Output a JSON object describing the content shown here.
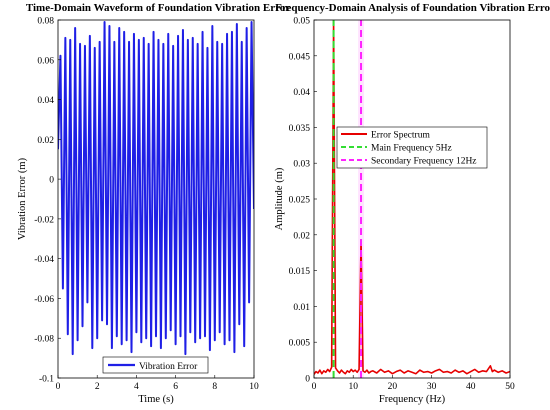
{
  "colors": {
    "waveform": "#1f1fe6",
    "spectrum": "#e60000",
    "main_frequency": "#33dd33",
    "secondary_frequency": "#ff22ff",
    "pink_band": "#ffe4ff",
    "axes": "#000000"
  },
  "chart_data": [
    {
      "type": "line",
      "title": "Time-Domain Waveform of Foundation Vibration Error",
      "xlabel": "Time (s)",
      "ylabel": "Vibration Error (m)",
      "xlim": [
        0,
        10
      ],
      "ylim": [
        -0.1,
        0.08
      ],
      "xticks": [
        "0",
        "2",
        "4",
        "6",
        "8",
        "10"
      ],
      "yticks": [
        "-0.1",
        "-0.08",
        "-0.06",
        "-0.04",
        "-0.02",
        "0",
        "0.02",
        "0.04",
        "0.06",
        "0.08"
      ],
      "grid": false,
      "legend_position": "bottom-center",
      "series": [
        {
          "name": "Vibration Error",
          "x": [
            0.0,
            0.125,
            0.25,
            0.375,
            0.5,
            0.625,
            0.75,
            0.875,
            1.0,
            1.125,
            1.25,
            1.375,
            1.5,
            1.625,
            1.75,
            1.875,
            2.0,
            2.125,
            2.25,
            2.375,
            2.5,
            2.625,
            2.75,
            2.875,
            3.0,
            3.125,
            3.25,
            3.375,
            3.5,
            3.625,
            3.75,
            3.875,
            4.0,
            4.125,
            4.25,
            4.375,
            4.5,
            4.625,
            4.75,
            4.875,
            5.0,
            5.125,
            5.25,
            5.375,
            5.5,
            5.625,
            5.75,
            5.875,
            6.0,
            6.125,
            6.25,
            6.375,
            6.5,
            6.625,
            6.75,
            6.875,
            7.0,
            7.125,
            7.25,
            7.375,
            7.5,
            7.625,
            7.75,
            7.875,
            8.0,
            8.125,
            8.25,
            8.375,
            8.5,
            8.625,
            8.75,
            8.875,
            9.0,
            9.125,
            9.25,
            9.375,
            9.5,
            9.625,
            9.75,
            9.875,
            10.0
          ],
          "y": [
            0.015,
            0.062,
            -0.055,
            0.071,
            -0.078,
            0.07,
            -0.088,
            0.076,
            -0.081,
            0.068,
            -0.074,
            0.067,
            -0.062,
            0.072,
            -0.085,
            0.066,
            -0.08,
            0.069,
            -0.071,
            0.079,
            -0.073,
            0.077,
            -0.085,
            0.069,
            -0.079,
            0.076,
            -0.083,
            0.074,
            -0.081,
            0.069,
            -0.087,
            0.073,
            -0.077,
            0.07,
            -0.082,
            0.071,
            -0.08,
            0.068,
            -0.084,
            0.074,
            -0.079,
            0.07,
            -0.085,
            0.068,
            -0.08,
            0.073,
            -0.076,
            0.067,
            -0.083,
            0.072,
            -0.079,
            0.075,
            -0.088,
            0.07,
            -0.077,
            0.071,
            -0.082,
            0.068,
            -0.08,
            0.074,
            -0.079,
            0.066,
            -0.086,
            0.077,
            -0.081,
            0.069,
            -0.077,
            0.068,
            -0.083,
            0.073,
            -0.081,
            0.074,
            -0.087,
            0.078,
            -0.073,
            0.069,
            -0.084,
            0.076,
            -0.062,
            0.079,
            -0.015
          ]
        }
      ]
    },
    {
      "type": "line",
      "title": "Frequency-Domain Analysis of Foundation Vibration Error",
      "xlabel": "Frequency (Hz)",
      "ylabel": "Amplitude (m)",
      "xlim": [
        0,
        50
      ],
      "ylim": [
        0,
        0.05
      ],
      "xticks": [
        "0",
        "10",
        "20",
        "30",
        "40",
        "50"
      ],
      "yticks": [
        "0",
        "0.005",
        "0.01",
        "0.015",
        "0.02",
        "0.025",
        "0.03",
        "0.035",
        "0.04",
        "0.045",
        "0.05"
      ],
      "grid": false,
      "legend_position": "center-right",
      "series": [
        {
          "name": "Error Spectrum",
          "x": [
            0,
            0.5,
            1,
            1.5,
            2,
            2.5,
            3,
            3.5,
            4,
            4.5,
            5,
            5.5,
            6,
            6.5,
            7,
            7.5,
            8,
            8.5,
            9,
            9.5,
            10,
            10.5,
            11,
            11.5,
            12,
            12.5,
            13,
            13.5,
            14,
            14.5,
            15,
            16,
            17,
            18,
            19,
            20,
            21,
            22,
            23,
            24,
            25,
            26,
            27,
            28,
            29,
            30,
            31,
            32,
            33,
            34,
            35,
            36,
            37,
            38,
            39,
            40,
            41,
            42,
            43,
            44,
            44.5,
            45,
            45.5,
            46,
            47,
            48,
            49,
            50
          ],
          "y": [
            0.0005,
            0.0009,
            0.0007,
            0.0011,
            0.0006,
            0.001,
            0.0008,
            0.0012,
            0.0009,
            0.0015,
            0.05,
            0.0014,
            0.001,
            0.0007,
            0.0011,
            0.0008,
            0.0006,
            0.001,
            0.0008,
            0.0012,
            0.0009,
            0.0011,
            0.0008,
            0.0012,
            0.0193,
            0.001,
            0.0008,
            0.0011,
            0.0007,
            0.0009,
            0.001,
            0.0007,
            0.0012,
            0.0008,
            0.001,
            0.0006,
            0.0009,
            0.0011,
            0.0007,
            0.001,
            0.0008,
            0.0006,
            0.0011,
            0.0008,
            0.0009,
            0.0007,
            0.001,
            0.0012,
            0.0008,
            0.0009,
            0.0007,
            0.0011,
            0.0008,
            0.001,
            0.0006,
            0.0009,
            0.0012,
            0.0008,
            0.001,
            0.0009,
            0.0013,
            0.0017,
            0.0009,
            0.0011,
            0.0008,
            0.001,
            0.0007,
            0.0009
          ]
        },
        {
          "name": "Main Frequency 5Hz",
          "x": [
            5,
            5
          ],
          "y": [
            0,
            0.05
          ]
        },
        {
          "name": "Secondary Frequency 12Hz",
          "x": [
            12,
            12
          ],
          "y": [
            0,
            0.05
          ]
        }
      ]
    }
  ]
}
